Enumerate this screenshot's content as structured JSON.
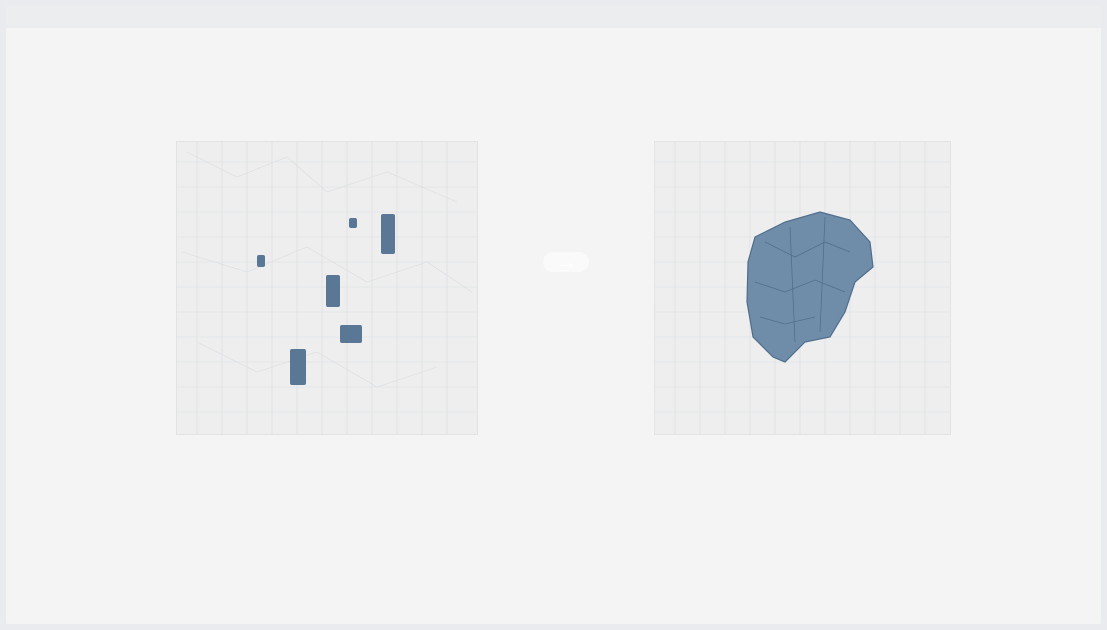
{
  "slide": {
    "title": "",
    "subtitle": "",
    "left_map": {
      "caption": "",
      "scale": ""
    },
    "right_map": {
      "caption": "",
      "scale": ""
    },
    "arrow": "→",
    "steps": [
      {
        "line1": "",
        "line2": "",
        "line3": ""
      },
      {
        "line1": "",
        "line2": "",
        "line3": ""
      },
      {
        "line1": "",
        "line2": "",
        "line3": ""
      }
    ]
  },
  "colors": {
    "background": "#f4f4f4",
    "frame": "#e9ebee",
    "map_bg": "#eeeeee",
    "highlight": "#5a7896",
    "title_text": "#b7a79b",
    "title_accent": "#c0392b"
  }
}
